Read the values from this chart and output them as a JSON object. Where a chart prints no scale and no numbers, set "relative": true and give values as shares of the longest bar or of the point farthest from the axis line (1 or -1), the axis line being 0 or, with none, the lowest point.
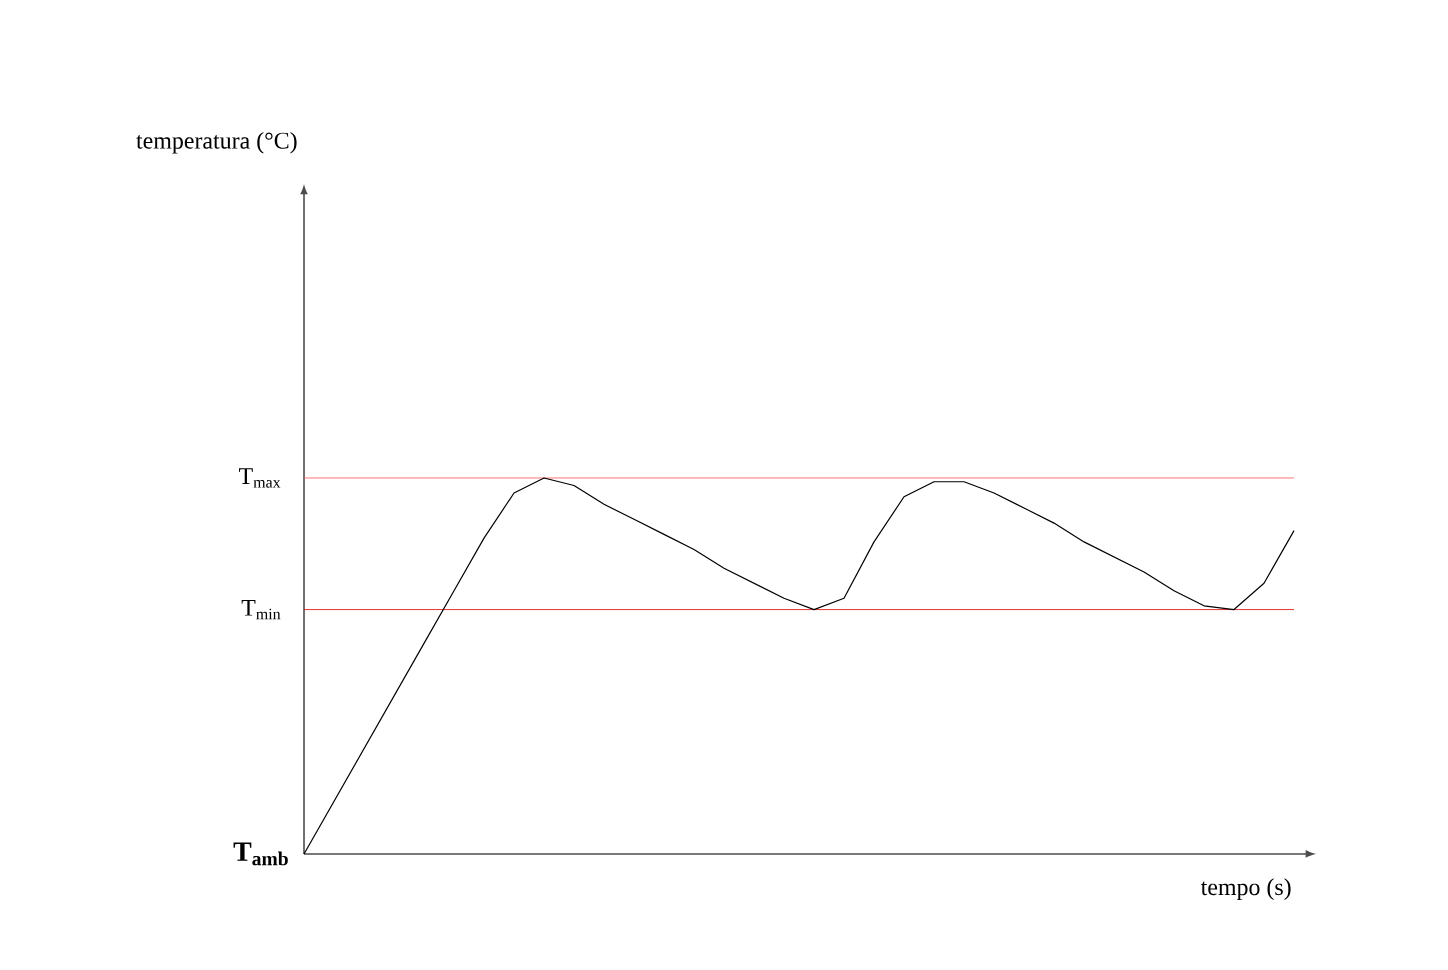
{
  "chart_data": {
    "type": "line",
    "relative": true,
    "xlabel": "tempo (s)",
    "categories": [
      null,
      null,
      null,
      null,
      null,
      null,
      null,
      null,
      null,
      null,
      null,
      null,
      null,
      null,
      null,
      null,
      null,
      null,
      null,
      null,
      null,
      null,
      null,
      null,
      null,
      null,
      null,
      null,
      null,
      null,
      null,
      null,
      null,
      null
    ],
    "series": [
      {
        "color": "#000000",
        "values": [
          0,
          0.14,
          0.28,
          0.42,
          0.56,
          0.7,
          0.84,
          0.96,
          1.0,
          0.98,
          0.93,
          0.89,
          0.85,
          0.81,
          0.76,
          0.72,
          0.68,
          0.65,
          0.68,
          0.83,
          0.95,
          0.99,
          0.99,
          0.96,
          0.92,
          0.88,
          0.83,
          0.79,
          0.75,
          0.7,
          0.66,
          0.65,
          0.72,
          0.86
        ]
      }
    ],
    "ref_lines": [
      {
        "axis": "y",
        "value": 1.0,
        "label": "T$_{max}$",
        "color": "#ff5050"
      },
      {
        "axis": "y",
        "value": 0.65,
        "label": "T$_{min}$",
        "color": "#e00000"
      }
    ],
    "annotations": [
      "temperatura (°C)",
      "T$_{amb}$"
    ],
    "line_style": "solid"
  }
}
